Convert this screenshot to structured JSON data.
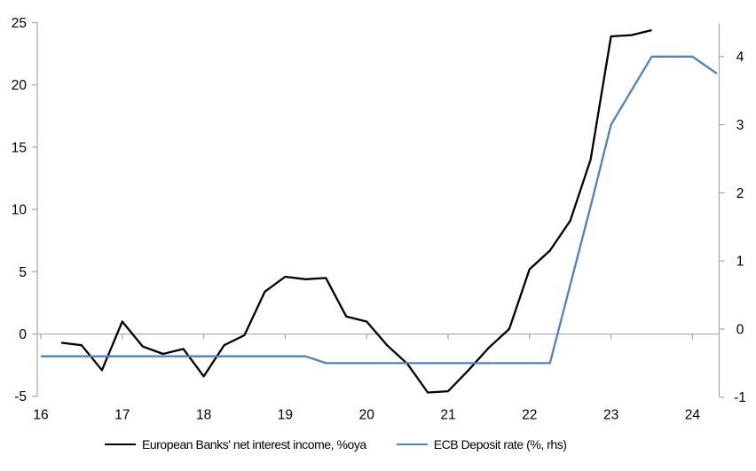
{
  "page": {
    "background": "#ffffff"
  },
  "chart_data": {
    "type": "line",
    "title": "",
    "grid": "zero-line-only",
    "legend_position": "bottom",
    "axis_color": "#a6a6a6",
    "text_color": "#000000",
    "x_axis": {
      "range": [
        15.956,
        24.328
      ],
      "ticks": [
        16,
        17,
        18,
        19,
        20,
        21,
        22,
        23,
        24
      ],
      "tick_labels": [
        "16",
        "17",
        "18",
        "19",
        "20",
        "21",
        "22",
        "23",
        "24"
      ]
    },
    "y_left": {
      "range": [
        -5.09,
        25.04
      ],
      "ticks": [
        -5,
        0,
        5,
        10,
        15,
        20,
        25
      ],
      "tick_labels": [
        "-5",
        "0",
        "5",
        "10",
        "15",
        "20",
        "25"
      ]
    },
    "y_right": {
      "range": [
        -1.003,
        4.505
      ],
      "ticks": [
        -1,
        0,
        1,
        2,
        3,
        4
      ],
      "tick_labels": [
        "-1",
        "0",
        "1",
        "2",
        "3",
        "4"
      ]
    },
    "series": [
      {
        "id": "nii",
        "name": "European Banks' net interest income, %oya",
        "axis": "left",
        "color": "#000000",
        "x": [
          16.25,
          16.5,
          16.75,
          17.0,
          17.25,
          17.5,
          17.75,
          18.0,
          18.25,
          18.5,
          18.75,
          19.0,
          19.25,
          19.5,
          19.75,
          20.0,
          20.25,
          20.5,
          20.75,
          21.0,
          21.25,
          21.5,
          21.75,
          22.0,
          22.25,
          22.5,
          22.75,
          23.0,
          23.25,
          23.5
        ],
        "values": [
          -0.7,
          -0.9,
          -2.9,
          1.0,
          -1.0,
          -1.6,
          -1.2,
          -3.4,
          -0.9,
          -0.1,
          3.4,
          4.6,
          4.4,
          4.5,
          1.4,
          1.0,
          -0.9,
          -2.4,
          -4.7,
          -4.6,
          -2.9,
          -1.1,
          0.4,
          5.2,
          6.7,
          9.1,
          14.0,
          23.9,
          24.0,
          24.4
        ]
      },
      {
        "id": "ecb",
        "name": "ECB Deposit rate (%, rhs)",
        "axis": "right",
        "color": "#4f81bd",
        "x": [
          16.0,
          16.25,
          16.5,
          16.75,
          17.0,
          17.25,
          17.5,
          17.75,
          18.0,
          18.25,
          18.5,
          18.75,
          19.0,
          19.25,
          19.5,
          19.75,
          20.0,
          20.25,
          20.5,
          20.75,
          21.0,
          21.25,
          21.5,
          21.75,
          22.0,
          22.25,
          22.5,
          22.75,
          23.0,
          23.25,
          23.5,
          23.75,
          24.0,
          24.3
        ],
        "values": [
          -0.4,
          -0.4,
          -0.4,
          -0.4,
          -0.4,
          -0.4,
          -0.4,
          -0.4,
          -0.4,
          -0.4,
          -0.4,
          -0.4,
          -0.4,
          -0.4,
          -0.5,
          -0.5,
          -0.5,
          -0.5,
          -0.5,
          -0.5,
          -0.5,
          -0.5,
          -0.5,
          -0.5,
          -0.5,
          -0.5,
          0.65,
          1.8,
          3.0,
          3.5,
          4.0,
          4.0,
          4.0,
          3.75
        ]
      }
    ]
  }
}
